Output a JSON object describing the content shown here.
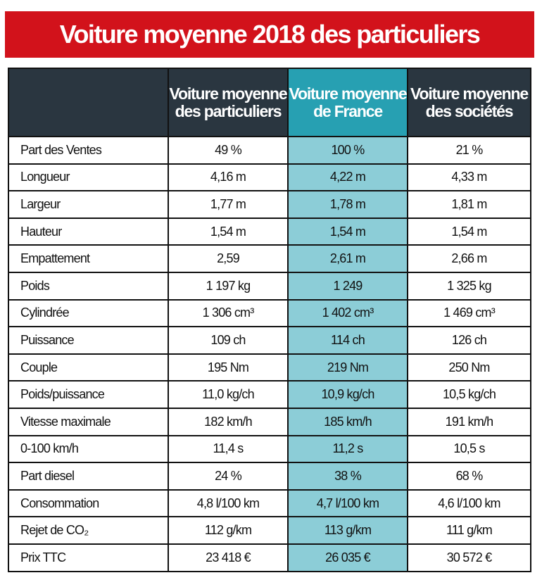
{
  "title": "Voiture moyenne 2018 des particuliers",
  "colors": {
    "title_bg": "#d2121b",
    "header_bg": "#2a3640",
    "highlight_header": "#27a0b2",
    "highlight_cell": "#8ccdd7"
  },
  "columns": [
    "",
    "Voiture moyenne des particuliers",
    "Voiture moyenne de France",
    "Voiture moyenne des sociétés"
  ],
  "rows": [
    [
      "Part des Ventes",
      "49 %",
      "100 %",
      "21 %"
    ],
    [
      "Longueur",
      "4,16 m",
      "4,22 m",
      "4,33 m"
    ],
    [
      "Largeur",
      "1,77 m",
      "1,78 m",
      "1,81 m"
    ],
    [
      "Hauteur",
      "1,54 m",
      "1,54 m",
      "1,54 m"
    ],
    [
      "Empattement",
      "2,59",
      "2,61 m",
      "2,66 m"
    ],
    [
      "Poids",
      "1 197 kg",
      "1 249",
      "1 325 kg"
    ],
    [
      "Cylindrée",
      "1 306 cm³",
      "1 402 cm³",
      "1 469 cm³"
    ],
    [
      "Puissance",
      "109 ch",
      "114 ch",
      "126 ch"
    ],
    [
      "Couple",
      "195 Nm",
      "219 Nm",
      "250 Nm"
    ],
    [
      "Poids/puissance",
      "11,0 kg/ch",
      "10,9 kg/ch",
      "10,5 kg/ch"
    ],
    [
      "Vitesse maximale",
      "182 km/h",
      "185 km/h",
      "191 km/h"
    ],
    [
      "0-100 km/h",
      "11,4 s",
      "11,2 s",
      "10,5 s"
    ],
    [
      "Part diesel",
      "24 %",
      "38 %",
      "68 %"
    ],
    [
      "Consommation",
      "4,8 l/100 km",
      "4,7 l/100 km",
      "4,6 l/100 km"
    ],
    [
      "Rejet de CO₂",
      "112 g/km",
      "113 g/km",
      "111 g/km"
    ],
    [
      "Prix TTC",
      "23 418 €",
      "26 035 €",
      "30 572 €"
    ]
  ]
}
